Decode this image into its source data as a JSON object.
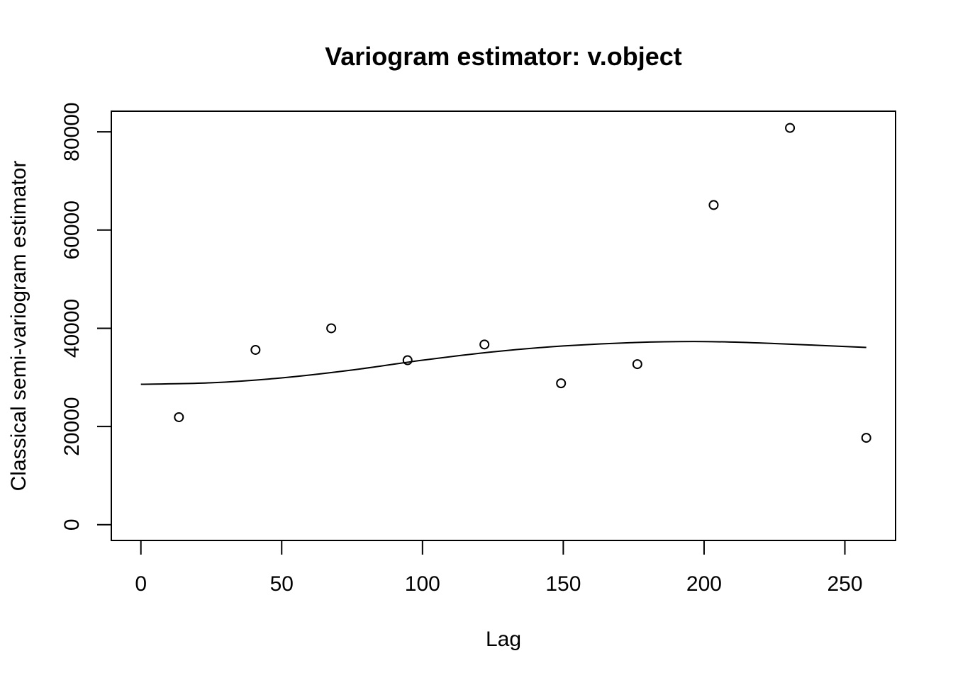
{
  "chart_data": {
    "type": "scatter",
    "title": "Variogram estimator: v.object",
    "xlabel": "Lag",
    "ylabel": "Classical semi-variogram estimator",
    "xlim": [
      -10.5,
      268
    ],
    "ylim": [
      -3200,
      84200
    ],
    "x_ticks": [
      0,
      50,
      100,
      150,
      200,
      250
    ],
    "y_ticks": [
      0,
      20000,
      40000,
      60000,
      80000
    ],
    "x_tick_labels": [
      "0",
      "50",
      "100",
      "150",
      "200",
      "250"
    ],
    "y_tick_labels": [
      "0",
      "20000",
      "40000",
      "60000",
      "80000"
    ],
    "grid": false,
    "legend": "none",
    "points": {
      "x": [
        13.5,
        40.7,
        67.6,
        94.7,
        122.0,
        149.2,
        176.3,
        203.4,
        230.5,
        257.6
      ],
      "y": [
        21900,
        35600,
        40000,
        33500,
        36700,
        28800,
        32700,
        65100,
        80800,
        17700
      ]
    },
    "fitted_line": {
      "x": [
        0,
        25,
        50,
        75,
        100,
        125,
        150,
        175,
        200,
        225,
        257.6
      ],
      "y": [
        28600,
        28900,
        29900,
        31500,
        33500,
        35200,
        36400,
        37100,
        37300,
        36900,
        36100
      ]
    }
  }
}
